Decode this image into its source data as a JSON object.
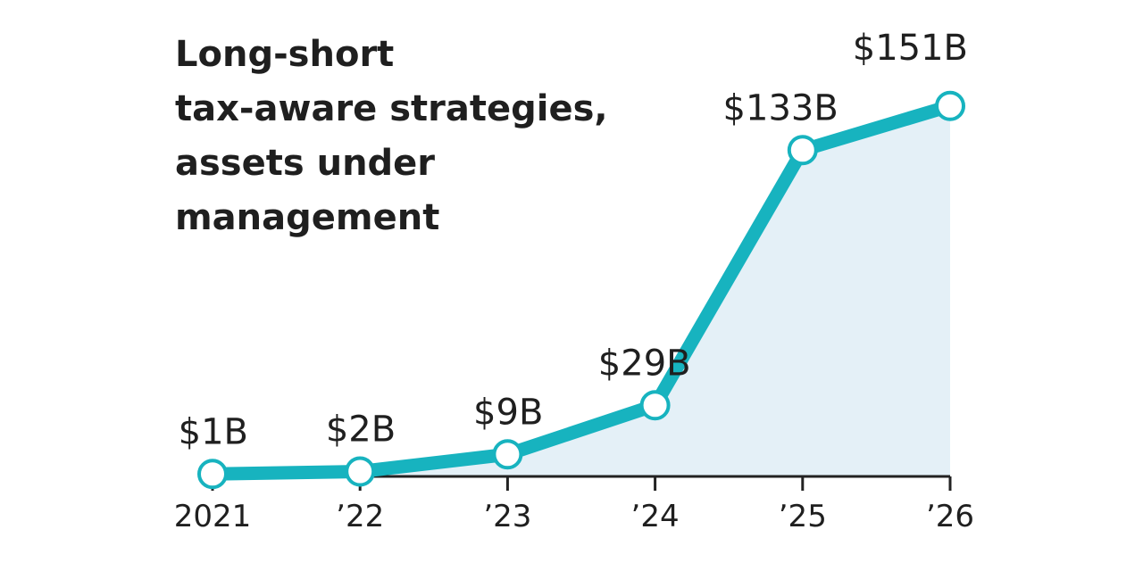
{
  "chart_data": {
    "type": "line",
    "title_lines": [
      "Long-short",
      "tax-aware strategies,",
      "assets under",
      "management"
    ],
    "categories": [
      "2021",
      "’22",
      "’23",
      "’24",
      "’25",
      "’26"
    ],
    "values": [
      1,
      2,
      9,
      29,
      133,
      151
    ],
    "data_labels": [
      "$1B",
      "$2B",
      "$9B",
      "$29B",
      "$133B",
      "$151B"
    ],
    "unit": "$B",
    "ylim": [
      0,
      160
    ],
    "grid": false,
    "legend": "none",
    "colors": {
      "line": "#17b3bf",
      "area": "#e4f0f7",
      "marker_fill": "#ffffff",
      "axis": "#222222",
      "text": "#1f1f1f"
    }
  }
}
